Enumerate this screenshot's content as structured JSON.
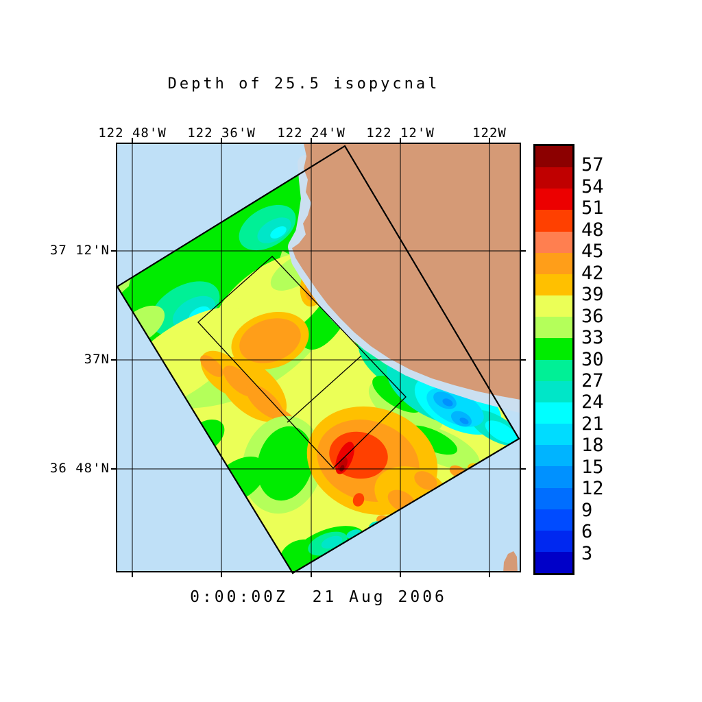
{
  "title": "Depth of 25.5 isopycnal",
  "caption": "0:00:00Z  21 Aug 2006",
  "axes": {
    "top_labels": [
      "122 48'W",
      "122 36'W",
      "122 24'W",
      "122 12'W",
      "122W"
    ],
    "left_labels": [
      "37 12'N",
      "37N",
      "36 48'N"
    ]
  },
  "colorbar": {
    "tick_labels": [
      "57",
      "54",
      "51",
      "48",
      "45",
      "42",
      "39",
      "36",
      "33",
      "30",
      "27",
      "24",
      "21",
      "18",
      "15",
      "12",
      "9",
      "6",
      "3"
    ],
    "colors": [
      "#8C0000",
      "#C00000",
      "#EC0000",
      "#FF4000",
      "#FF7F50",
      "#FF9E19",
      "#FFC000",
      "#EBFF57",
      "#B4FF5A",
      "#00EC00",
      "#00F096",
      "#00E6C8",
      "#00FFFF",
      "#00DCFF",
      "#00B4FF",
      "#0091FF",
      "#006EFF",
      "#004BFF",
      "#0028F0",
      "#0000C8"
    ]
  },
  "map_colors": {
    "ocean": "#BFE0F7",
    "shelf_water": "#CBDFF0",
    "land": "#D59A76",
    "grid": "#000000"
  },
  "chart_data": {
    "type": "heatmap",
    "title": "Depth of 25.5 isopycnal",
    "time_caption": "0:00:00Z  21 Aug 2006",
    "x_ticks": [
      "122 48'W",
      "122 36'W",
      "122 24'W",
      "122 12'W",
      "122W"
    ],
    "y_ticks": [
      "37 12'N",
      "37N",
      "36 48'N"
    ],
    "grid": true,
    "legend_position": "right",
    "colorbar_values": [
      57,
      54,
      51,
      48,
      45,
      42,
      39,
      36,
      33,
      30,
      27,
      24,
      21,
      18,
      15,
      12,
      9,
      6,
      3
    ],
    "colorbar_colors": [
      "#8C0000",
      "#C00000",
      "#EC0000",
      "#FF4000",
      "#FF7F50",
      "#FF9E19",
      "#FFC000",
      "#EBFF57",
      "#B4FF5A",
      "#00EC00",
      "#00F096",
      "#00E6C8",
      "#00FFFF",
      "#00DCFF",
      "#00B4FF",
      "#0091FF",
      "#006EFF",
      "#004BFF",
      "#0028F0",
      "#0000C8"
    ],
    "overlays": [
      "rotated rectangular survey swath filled with contoured field values",
      "smaller thin-lined rotated rectangle with one perpendicular divider line inside the swath",
      "coastline with land in upper-right quadrant and a small islet at lower-right"
    ],
    "field_readings": [
      {
        "location": "northwest part of swath (offshore, upper left)",
        "approx_value_range": "24-33"
      },
      {
        "location": "broad central swath",
        "approx_value_range": "33-42"
      },
      {
        "location": "isolated orange patches upper-middle and mid-left diagonal band",
        "approx_value_range": "42-48"
      },
      {
        "location": "maximum core lower-center of swath",
        "approx_value_range": "48-57+"
      },
      {
        "location": "nearshore pool on east side of swath (cyan/blue)",
        "approx_value_range": "9-24"
      },
      {
        "location": "green bands along swath edges and near coast",
        "approx_value_range": "27-33"
      }
    ]
  }
}
